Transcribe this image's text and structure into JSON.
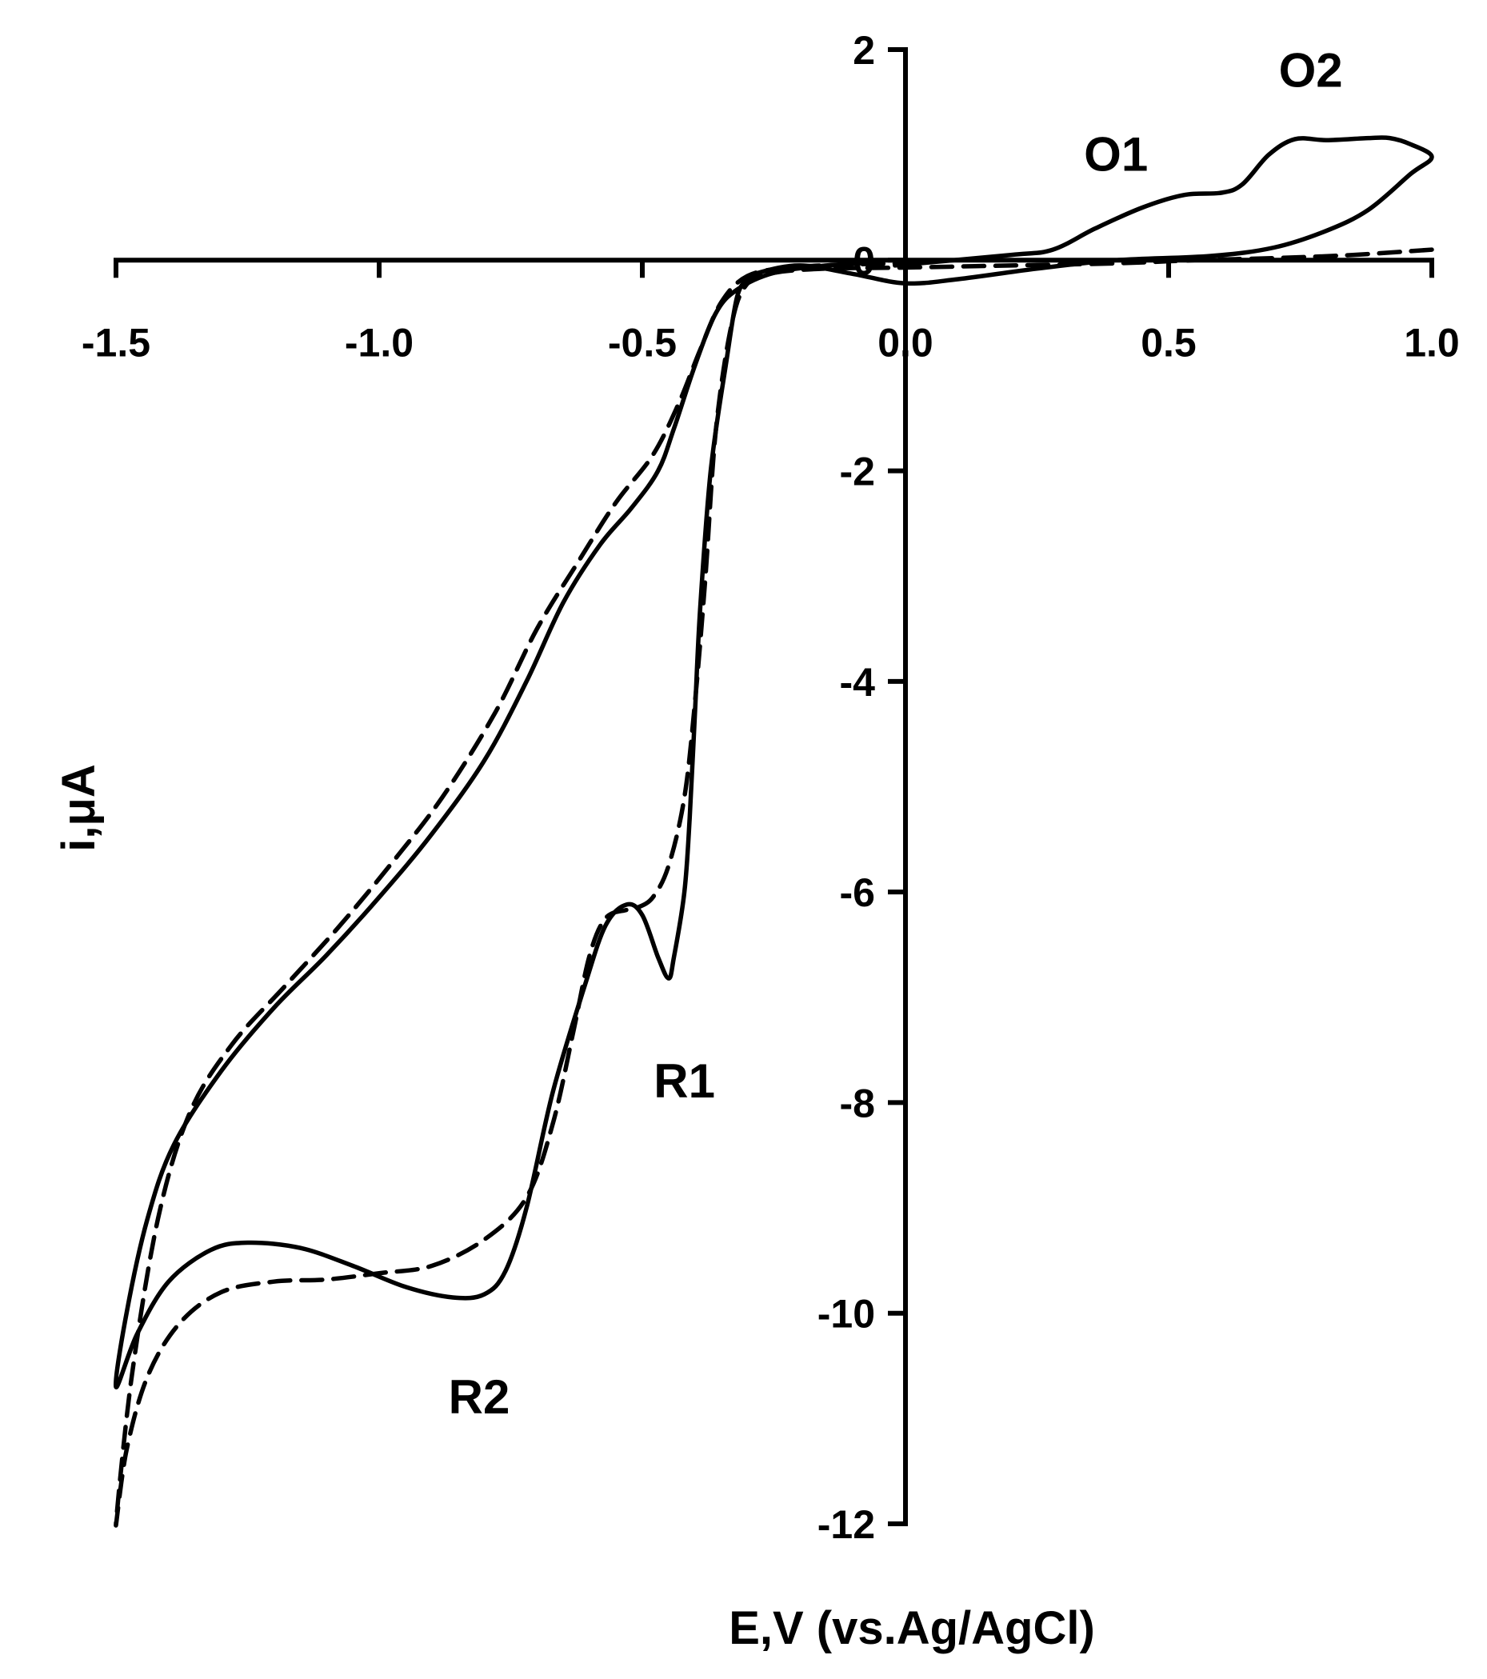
{
  "chart_data": {
    "type": "line",
    "title": "",
    "xlabel": "E,V (vs.Ag/AgCl)",
    "ylabel": "i,μA",
    "xlim": [
      -1.5,
      1.0
    ],
    "ylim": [
      -12,
      2
    ],
    "x_ticks": [
      -1.5,
      -1.0,
      -0.5,
      0.0,
      0.5,
      1.0
    ],
    "x_tick_labels": [
      "-1.5",
      "-1.0",
      "-0.5",
      "0.0",
      "0.5",
      "1.0"
    ],
    "y_ticks": [
      2,
      0,
      -2,
      -4,
      -6,
      -8,
      -10,
      -12
    ],
    "y_tick_labels": [
      "2",
      "0",
      "-2",
      "-4",
      "-6",
      "-8",
      "-10",
      "-12"
    ],
    "grid": false,
    "legend": "none",
    "annotations": [
      {
        "text": "O1",
        "x": 0.4,
        "y": 1.0
      },
      {
        "text": "O2",
        "x": 0.77,
        "y": 1.8
      },
      {
        "text": "R1",
        "x": -0.42,
        "y": -7.8
      },
      {
        "text": "R2",
        "x": -0.81,
        "y": -10.8
      }
    ],
    "series": [
      {
        "style": "solid",
        "color": "#000000",
        "points": [
          [
            -0.02,
            -0.05
          ],
          [
            0.2,
            0.05
          ],
          [
            0.28,
            0.1
          ],
          [
            0.36,
            0.3
          ],
          [
            0.45,
            0.5
          ],
          [
            0.53,
            0.62
          ],
          [
            0.6,
            0.64
          ],
          [
            0.64,
            0.72
          ],
          [
            0.69,
            1.0
          ],
          [
            0.74,
            1.15
          ],
          [
            0.8,
            1.14
          ],
          [
            0.88,
            1.16
          ],
          [
            0.92,
            1.16
          ],
          [
            0.96,
            1.1
          ],
          [
            1.0,
            0.98
          ],
          [
            0.96,
            0.82
          ],
          [
            0.88,
            0.48
          ],
          [
            0.8,
            0.28
          ],
          [
            0.7,
            0.12
          ],
          [
            0.58,
            0.04
          ],
          [
            0.4,
            0.0
          ],
          [
            0.25,
            -0.08
          ],
          [
            0.1,
            -0.18
          ],
          [
            0.0,
            -0.22
          ],
          [
            -0.1,
            -0.13
          ],
          [
            -0.2,
            -0.05
          ],
          [
            -0.28,
            -0.12
          ],
          [
            -0.3,
            -0.18
          ],
          [
            -0.32,
            -0.35
          ],
          [
            -0.34,
            -0.95
          ],
          [
            -0.37,
            -2.0
          ],
          [
            -0.39,
            -3.3
          ],
          [
            -0.4,
            -4.3
          ],
          [
            -0.41,
            -5.3
          ],
          [
            -0.42,
            -6.0
          ],
          [
            -0.44,
            -6.62
          ],
          [
            -0.45,
            -6.82
          ],
          [
            -0.47,
            -6.62
          ],
          [
            -0.5,
            -6.22
          ],
          [
            -0.53,
            -6.12
          ],
          [
            -0.57,
            -6.32
          ],
          [
            -0.61,
            -6.9
          ],
          [
            -0.67,
            -7.9
          ],
          [
            -0.72,
            -9.0
          ],
          [
            -0.76,
            -9.6
          ],
          [
            -0.8,
            -9.82
          ],
          [
            -0.86,
            -9.85
          ],
          [
            -0.95,
            -9.75
          ],
          [
            -1.05,
            -9.55
          ],
          [
            -1.15,
            -9.38
          ],
          [
            -1.25,
            -9.33
          ],
          [
            -1.32,
            -9.4
          ],
          [
            -1.4,
            -9.7
          ],
          [
            -1.46,
            -10.2
          ],
          [
            -1.5,
            -10.7
          ],
          [
            -1.48,
            -10.0
          ],
          [
            -1.44,
            -9.1
          ],
          [
            -1.39,
            -8.4
          ],
          [
            -1.3,
            -7.7
          ],
          [
            -1.2,
            -7.1
          ],
          [
            -1.1,
            -6.6
          ],
          [
            -1.0,
            -6.05
          ],
          [
            -0.9,
            -5.45
          ],
          [
            -0.8,
            -4.75
          ],
          [
            -0.72,
            -4.0
          ],
          [
            -0.65,
            -3.25
          ],
          [
            -0.58,
            -2.7
          ],
          [
            -0.52,
            -2.35
          ],
          [
            -0.47,
            -2.0
          ],
          [
            -0.44,
            -1.6
          ],
          [
            -0.4,
            -1.0
          ],
          [
            -0.36,
            -0.5
          ],
          [
            -0.32,
            -0.28
          ],
          [
            -0.25,
            -0.12
          ],
          [
            -0.15,
            -0.05
          ],
          [
            -0.05,
            -0.02
          ]
        ]
      },
      {
        "style": "dashed",
        "color": "#000000",
        "points": [
          [
            1.0,
            0.1
          ],
          [
            0.85,
            0.05
          ],
          [
            0.7,
            0.02
          ],
          [
            0.55,
            0.0
          ],
          [
            0.4,
            -0.03
          ],
          [
            0.2,
            -0.05
          ],
          [
            0.0,
            -0.07
          ],
          [
            -0.15,
            -0.08
          ],
          [
            -0.25,
            -0.12
          ],
          [
            -0.3,
            -0.22
          ],
          [
            -0.33,
            -0.6
          ],
          [
            -0.36,
            -1.6
          ],
          [
            -0.38,
            -3.0
          ],
          [
            -0.4,
            -4.2
          ],
          [
            -0.42,
            -5.1
          ],
          [
            -0.45,
            -5.75
          ],
          [
            -0.48,
            -6.05
          ],
          [
            -0.51,
            -6.15
          ],
          [
            -0.53,
            -6.17
          ],
          [
            -0.57,
            -6.25
          ],
          [
            -0.6,
            -6.6
          ],
          [
            -0.63,
            -7.3
          ],
          [
            -0.67,
            -8.2
          ],
          [
            -0.72,
            -8.9
          ],
          [
            -0.8,
            -9.3
          ],
          [
            -0.9,
            -9.55
          ],
          [
            -1.0,
            -9.62
          ],
          [
            -1.1,
            -9.68
          ],
          [
            -1.2,
            -9.7
          ],
          [
            -1.3,
            -9.8
          ],
          [
            -1.38,
            -10.1
          ],
          [
            -1.44,
            -10.6
          ],
          [
            -1.48,
            -11.3
          ],
          [
            -1.5,
            -12.0
          ],
          [
            -1.47,
            -10.6
          ],
          [
            -1.42,
            -9.1
          ],
          [
            -1.36,
            -8.1
          ],
          [
            -1.28,
            -7.45
          ],
          [
            -1.18,
            -6.9
          ],
          [
            -1.08,
            -6.35
          ],
          [
            -0.98,
            -5.75
          ],
          [
            -0.88,
            -5.1
          ],
          [
            -0.78,
            -4.3
          ],
          [
            -0.7,
            -3.5
          ],
          [
            -0.62,
            -2.85
          ],
          [
            -0.55,
            -2.3
          ],
          [
            -0.48,
            -1.85
          ],
          [
            -0.43,
            -1.35
          ],
          [
            -0.39,
            -0.85
          ],
          [
            -0.35,
            -0.4
          ],
          [
            -0.3,
            -0.15
          ],
          [
            -0.22,
            -0.07
          ],
          [
            -0.1,
            -0.04
          ],
          [
            0.0,
            -0.03
          ]
        ]
      }
    ]
  }
}
